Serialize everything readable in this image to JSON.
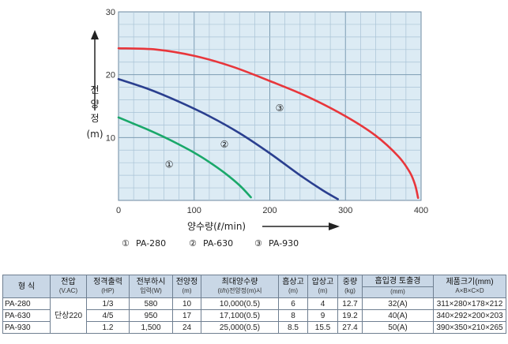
{
  "chart_data": {
    "type": "line",
    "title": "",
    "xlabel": "양수량(ℓ/min)",
    "ylabel_chars": [
      "전",
      "양",
      "정",
      "(m)"
    ],
    "xlim": [
      0,
      400
    ],
    "ylim": [
      0,
      30
    ],
    "xticks": [
      0,
      100,
      200,
      300,
      400
    ],
    "yticks": [
      10,
      20,
      30
    ],
    "grid": true,
    "series": [
      {
        "name": "PA-280",
        "marker_label": "①",
        "color": "#1aa86a",
        "x": [
          0,
          20,
          40,
          60,
          80,
          100,
          120,
          140,
          160,
          175
        ],
        "y": [
          13.2,
          12.2,
          11.2,
          10.1,
          8.9,
          7.6,
          6.1,
          4.4,
          2.4,
          0.5
        ]
      },
      {
        "name": "PA-630",
        "marker_label": "②",
        "color": "#2a3f8f",
        "x": [
          0,
          40,
          80,
          120,
          160,
          200,
          240,
          270,
          290
        ],
        "y": [
          19.3,
          17.7,
          15.7,
          13.4,
          10.7,
          7.5,
          4.0,
          1.6,
          0.2
        ]
      },
      {
        "name": "PA-930",
        "marker_label": "③",
        "color": "#e8363b",
        "x": [
          0,
          50,
          100,
          150,
          200,
          250,
          300,
          340,
          370,
          385,
          392,
          396
        ],
        "y": [
          24.2,
          24.0,
          23.0,
          21.3,
          19.0,
          16.5,
          13.4,
          10.3,
          7.0,
          4.5,
          2.5,
          0.4
        ]
      }
    ],
    "legend": [
      {
        "symbol": "①",
        "label": "PA-280"
      },
      {
        "symbol": "②",
        "label": "PA-630"
      },
      {
        "symbol": "③",
        "label": "PA-930"
      }
    ]
  },
  "table": {
    "headers": {
      "model": "형 식",
      "voltage": {
        "top": "전압",
        "sub": "(V.AC)"
      },
      "rated_output": {
        "top": "정격출력",
        "sub": "(HP)"
      },
      "full_load": {
        "top": "전부하시",
        "sub": "입력(W)"
      },
      "total_head": {
        "top": "전양정",
        "sub": "(m)"
      },
      "max_flow": {
        "top": "최대양수량",
        "sub": "(ℓ/h)전양정(m)시"
      },
      "suction_head": {
        "top": "흡상고",
        "sub": "(m)"
      },
      "push_head": {
        "top": "압상고",
        "sub": "(m)"
      },
      "weight": {
        "top": "중량",
        "sub": "(kg)"
      },
      "suction_dia": "흡입경",
      "discharge_dia": "토출경",
      "diameter_unit": "(mm)",
      "dimensions": {
        "top": "제품크기(mm)",
        "sub": "A×B×C×D"
      }
    },
    "shared_voltage": "단상220",
    "rows": [
      {
        "model": "PA-280",
        "output": "1/3",
        "input": "580",
        "head": "10",
        "flow": "10,000(0.5)",
        "suction": "6",
        "push": "4",
        "weight": "12.7",
        "dia": "32(A)",
        "size": "311×280×178×212"
      },
      {
        "model": "PA-630",
        "output": "4/5",
        "input": "950",
        "head": "17",
        "flow": "17,100(0.5)",
        "suction": "8",
        "push": "9",
        "weight": "19.2",
        "dia": "40(A)",
        "size": "340×292×200×203"
      },
      {
        "model": "PA-930",
        "output": "1.2",
        "input": "1,500",
        "head": "24",
        "flow": "25,000(0.5)",
        "suction": "8.5",
        "push": "15.5",
        "weight": "27.4",
        "dia": "50(A)",
        "size": "390×350×210×265"
      }
    ]
  }
}
